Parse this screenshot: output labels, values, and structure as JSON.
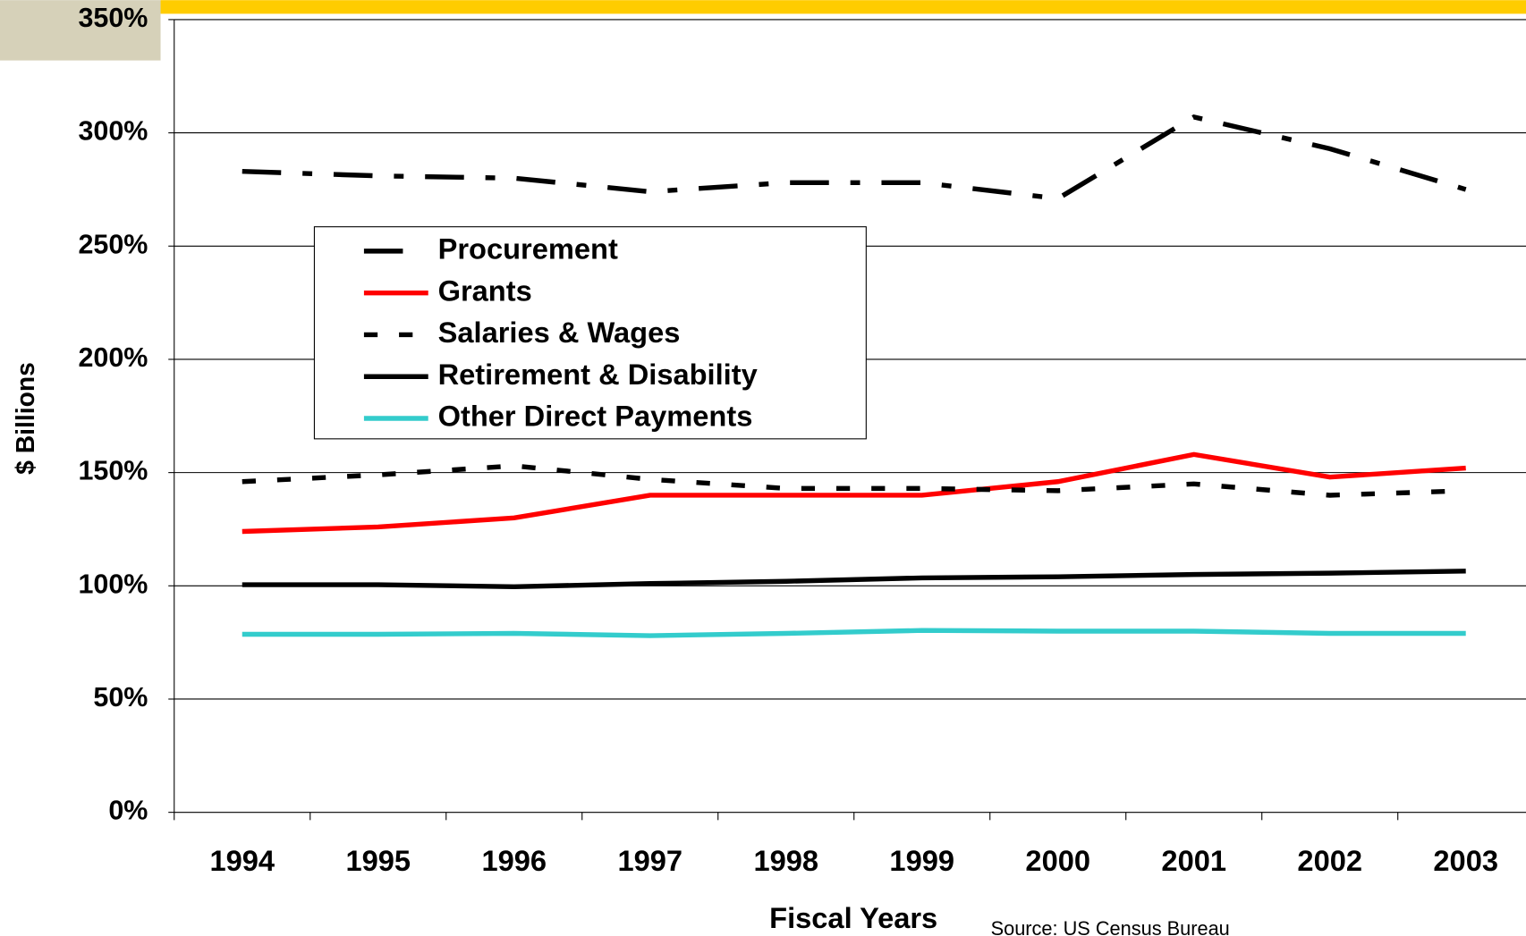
{
  "chart_data": {
    "type": "line",
    "y_label": "$ Billions",
    "x_label": "Fiscal Years",
    "source": "Source:  US Census Bureau",
    "categories": [
      "1994",
      "1995",
      "1996",
      "1997",
      "1998",
      "1999",
      "2000",
      "2001",
      "2002",
      "2003"
    ],
    "ylim": [
      0,
      350
    ],
    "yticks": [
      {
        "value": 0,
        "label": "0%"
      },
      {
        "value": 50,
        "label": "50%"
      },
      {
        "value": 100,
        "label": "100%"
      },
      {
        "value": 150,
        "label": "150%"
      },
      {
        "value": 200,
        "label": "200%"
      },
      {
        "value": 250,
        "label": "250%"
      },
      {
        "value": 300,
        "label": "300%"
      },
      {
        "value": 350,
        "label": "350%"
      }
    ],
    "grid": true,
    "legend": "upper left",
    "series": [
      {
        "name": "Procurement",
        "color": "#000000",
        "style": "dashdot",
        "values": [
          283,
          281,
          280,
          274,
          278,
          278,
          271,
          307,
          293,
          275
        ]
      },
      {
        "name": "Grants",
        "color": "#ff0000",
        "style": "solid",
        "values": [
          124,
          126,
          130,
          140,
          140,
          140,
          146,
          158,
          148,
          152
        ]
      },
      {
        "name": "Salaries & Wages",
        "color": "#000000",
        "style": "dashed",
        "values": [
          146,
          149,
          153,
          147,
          143,
          143,
          142,
          145,
          140,
          142
        ]
      },
      {
        "name": "Retirement & Disability",
        "color": "#000000",
        "style": "solid",
        "values": [
          100.5,
          100.5,
          99.6,
          101,
          102,
          103.5,
          104,
          105,
          105.6,
          106.5
        ]
      },
      {
        "name": "Other Direct Payments",
        "color": "#33cccc",
        "style": "solid",
        "values": [
          78.6,
          78.6,
          79,
          78,
          79,
          80.3,
          80,
          80,
          79,
          79
        ]
      }
    ]
  }
}
